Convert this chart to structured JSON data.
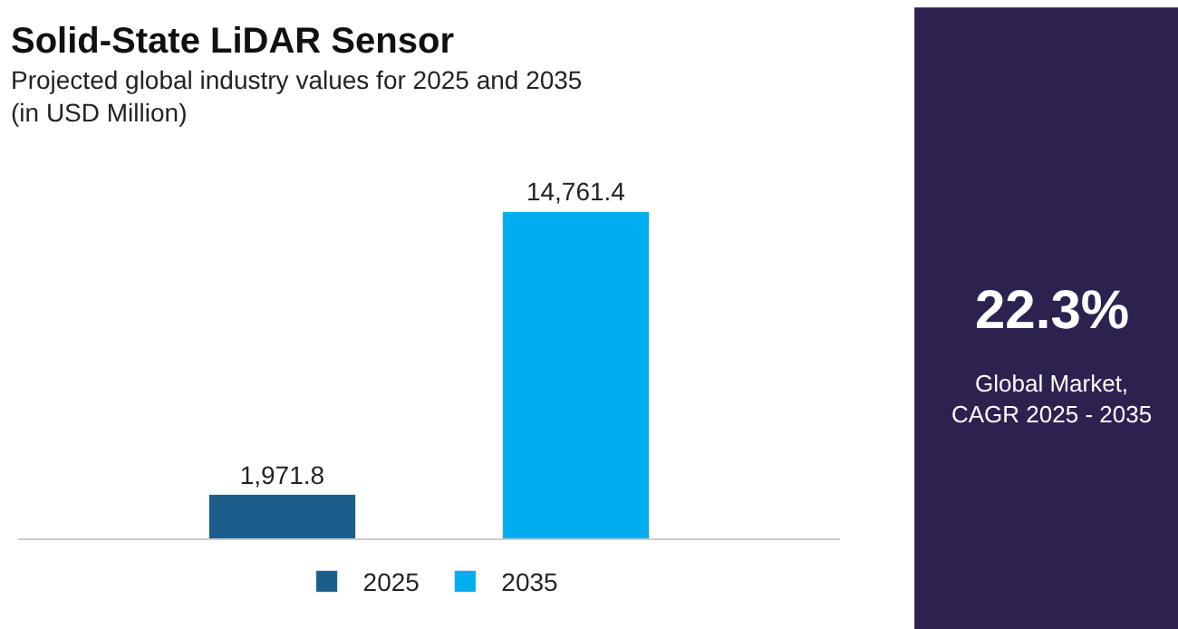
{
  "chart_data": {
    "type": "bar",
    "title": "Solid-State LiDAR Sensor",
    "subtitle": "Projected global industry values for 2025 and 2035\n(in USD Million)",
    "categories": [
      null,
      null
    ],
    "series": [
      {
        "name": "2025",
        "color": "#1b5e8c",
        "values": [
          1971.8,
          null
        ],
        "value_labels": [
          "1,971.8",
          null
        ]
      },
      {
        "name": "2035",
        "color": "#00aeef",
        "values": [
          null,
          14761.4
        ],
        "value_labels": [
          null,
          "14,761.4"
        ]
      }
    ],
    "stacked": true,
    "legend": "bottom",
    "annotations": [
      "22.3%",
      "Global Market,\nCAGR 2025 - 2035"
    ]
  }
}
